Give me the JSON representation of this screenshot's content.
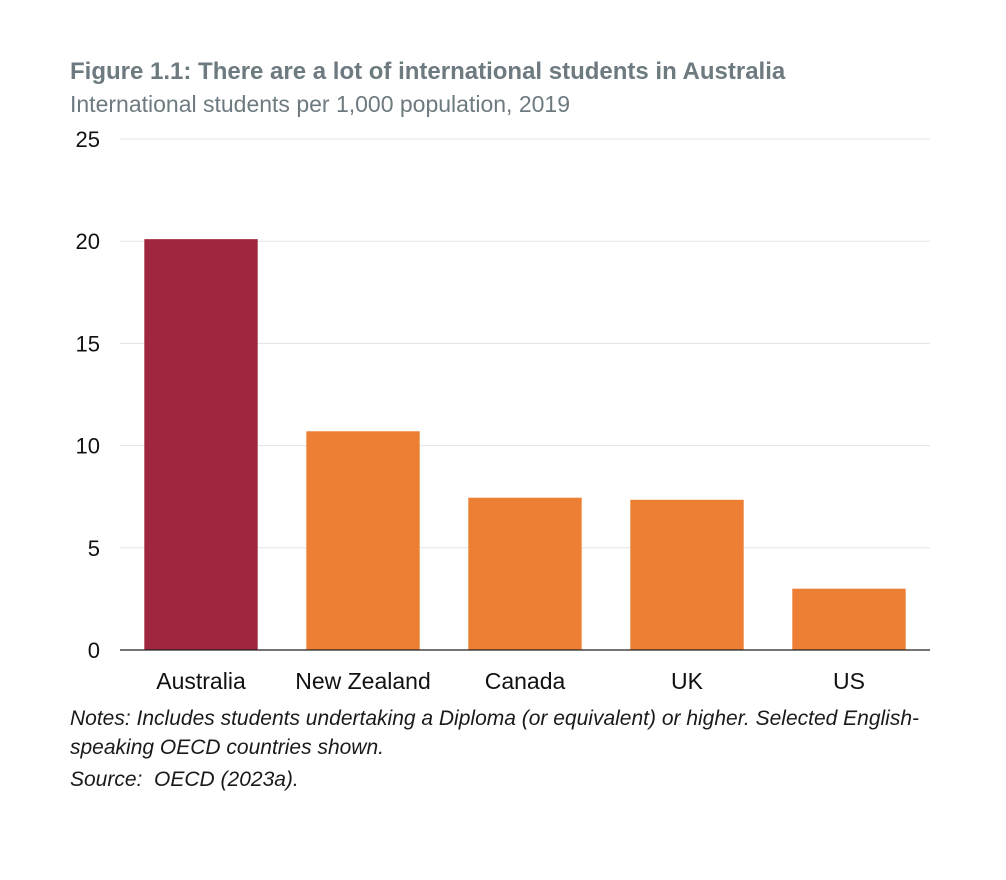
{
  "figure": {
    "title": "Figure 1.1: There are a lot of international students in Australia",
    "subtitle": "International students per 1,000 population, 2019",
    "notes": "Notes: Includes students undertaking a Diploma (or equivalent) or higher. Selected English-speaking OECD countries shown.",
    "source": "Source:  OECD (2023a)."
  },
  "chart_data": {
    "type": "bar",
    "title": "Figure 1.1: There are a lot of international students in Australia",
    "subtitle": "International students per 1,000 population, 2019",
    "categories": [
      "Australia",
      "New Zealand",
      "Canada",
      "UK",
      "US"
    ],
    "values": [
      20.1,
      10.7,
      7.45,
      7.35,
      3.0
    ],
    "colors": [
      "#a0253e",
      "#ed7f34",
      "#ed7f34",
      "#ed7f34",
      "#ed7f34"
    ],
    "ylim": [
      0,
      25
    ],
    "yticks": [
      0,
      5,
      10,
      15,
      20,
      25
    ],
    "grid": true
  }
}
